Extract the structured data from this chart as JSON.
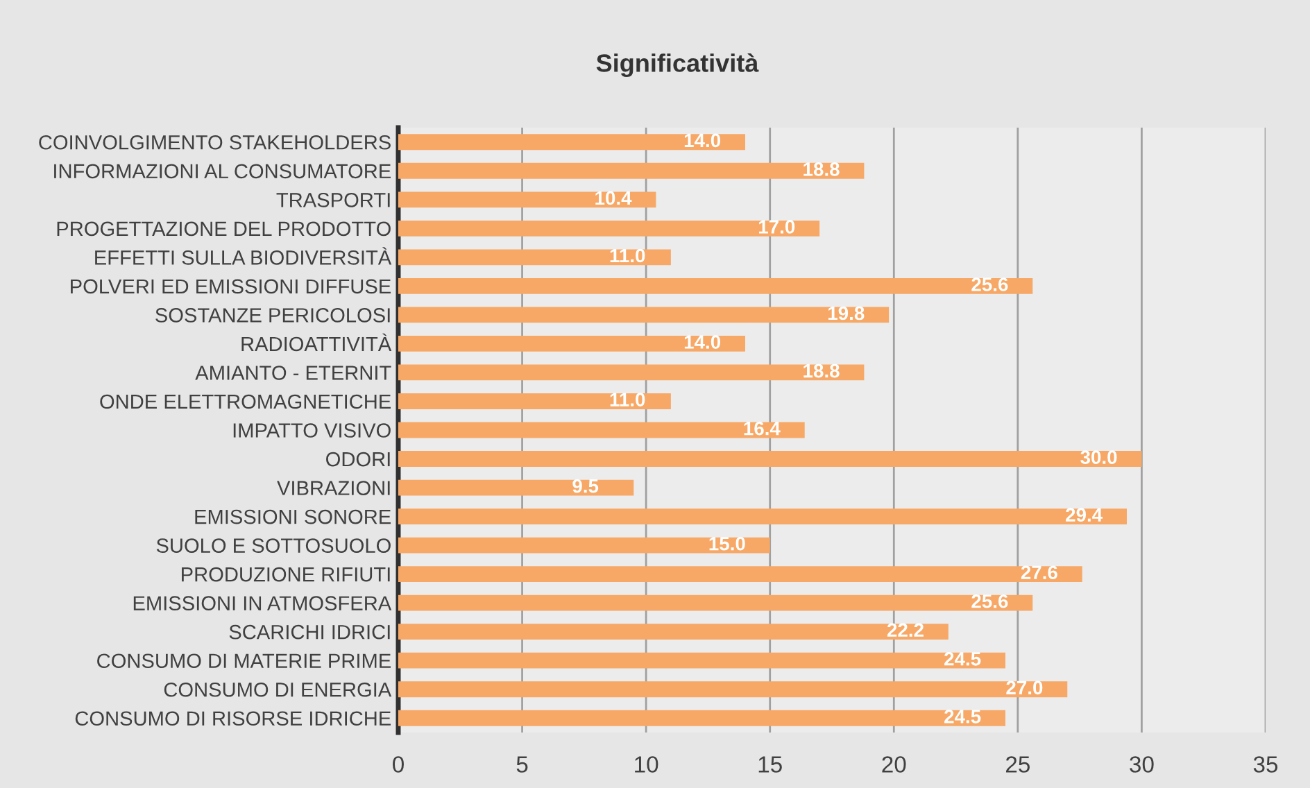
{
  "chart_data": {
    "type": "bar",
    "orientation": "horizontal",
    "title": "Significatività",
    "categories": [
      "COINVOLGIMENTO STAKEHOLDERS",
      "INFORMAZIONI AL CONSUMATORE",
      "TRASPORTI",
      "PROGETTAZIONE DEL PRODOTTO",
      "EFFETTI SULLA BIODIVERSITÀ",
      "POLVERI ED EMISSIONI DIFFUSE",
      "SOSTANZE PERICOLOSI",
      "RADIOATTIVITÀ",
      "AMIANTO - ETERNIT",
      "ONDE ELETTROMAGNETICHE",
      "IMPATTO VISIVO",
      "ODORI",
      "VIBRAZIONI",
      "EMISSIONI SONORE",
      "SUOLO E SOTTOSUOLO",
      "PRODUZIONE RIFIUTI",
      "EMISSIONI IN ATMOSFERA",
      "SCARICHI IDRICI",
      "CONSUMO DI MATERIE PRIME",
      "CONSUMO DI ENERGIA",
      "CONSUMO DI RISORSE IDRICHE"
    ],
    "values": [
      14.0,
      18.8,
      10.4,
      17.0,
      11.0,
      25.6,
      19.8,
      14.0,
      18.8,
      11.0,
      16.4,
      30.0,
      9.5,
      29.4,
      15.0,
      27.6,
      25.6,
      22.2,
      24.5,
      27.0,
      24.5
    ],
    "value_labels": [
      "14.0",
      "18.8",
      "10.4",
      "17.0",
      "11.0",
      "25.6",
      "19.8",
      "14.0",
      "18.8",
      "11.0",
      "16.4",
      "30.0",
      "9.5",
      "29.4",
      "15.0",
      "27.6",
      "25.6",
      "22.2",
      "24.5",
      "27.0",
      "24.5"
    ],
    "color": "#f7a866",
    "xlim": [
      0,
      35
    ],
    "xticks": [
      0,
      5,
      10,
      15,
      20,
      25,
      30,
      35
    ],
    "grid": "x"
  }
}
